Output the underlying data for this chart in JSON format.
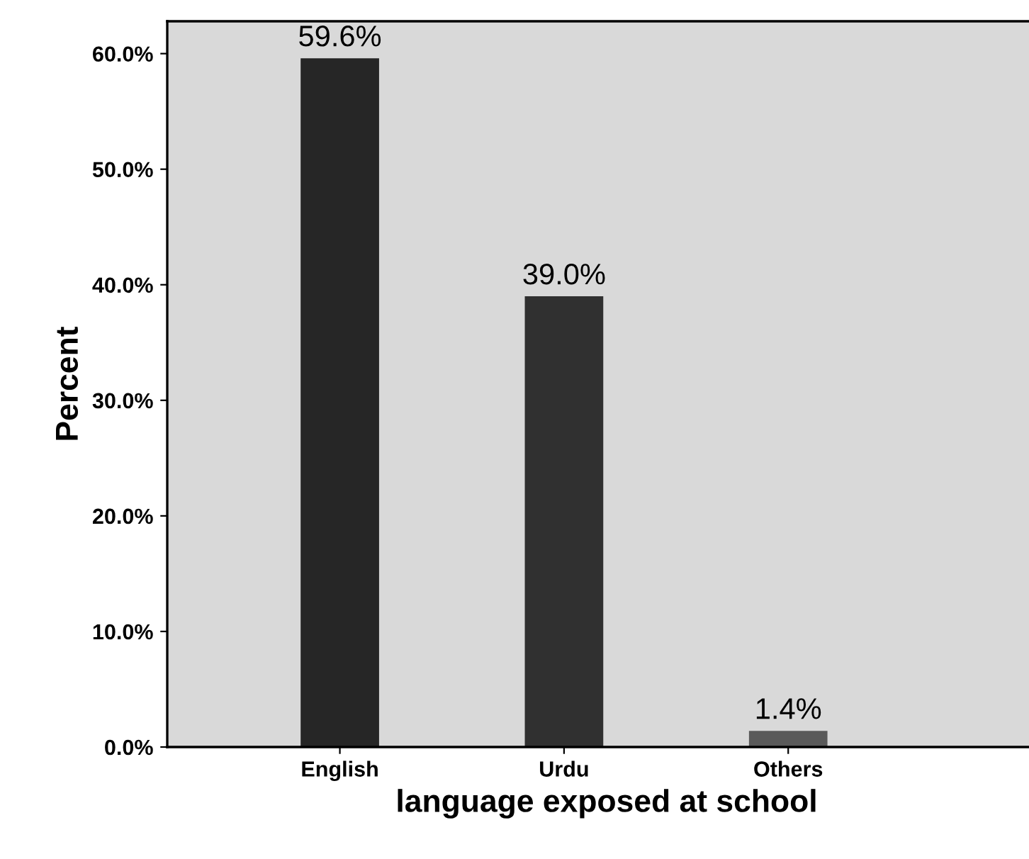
{
  "chart_data": {
    "type": "bar",
    "xlabel": "language exposed at school",
    "ylabel": "Percent",
    "categories": [
      "English",
      "Urdu",
      "Others"
    ],
    "values": [
      59.6,
      39.0,
      1.4
    ],
    "colors": [
      "#262626",
      "#303030",
      "#5a5a5a"
    ],
    "value_labels": [
      "59.6%",
      "39.0%",
      "1.4%"
    ],
    "ylim": [
      0,
      62.8
    ],
    "yticks": [
      {
        "value": 0,
        "label": "0.0%"
      },
      {
        "value": 10,
        "label": "10.0%"
      },
      {
        "value": 20,
        "label": "20.0%"
      },
      {
        "value": 30,
        "label": "30.0%"
      },
      {
        "value": 40,
        "label": "40.0%"
      },
      {
        "value": 50,
        "label": "50.0%"
      },
      {
        "value": 60,
        "label": "60.0%"
      }
    ],
    "grid": false,
    "legend": false
  }
}
